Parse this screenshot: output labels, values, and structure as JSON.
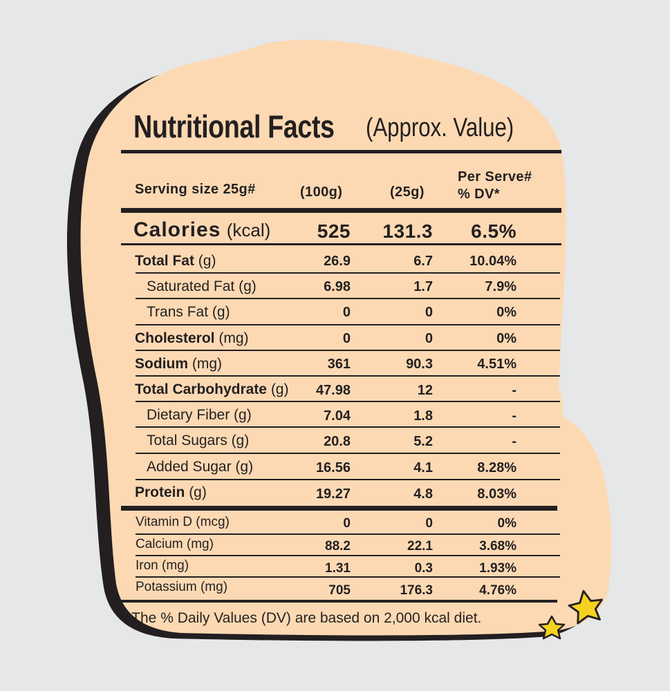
{
  "title": "Nutritional Facts",
  "subtitle": "(Approx. Value)",
  "header": {
    "serving": "Serving size 25g#",
    "col1": "(100g)",
    "col2": "(25g)",
    "col3_line1": "Per Serve#",
    "col3_line2": "% DV*"
  },
  "calories": {
    "label": "Calories",
    "unit": "(kcal)",
    "v100": "525",
    "v25": "131.3",
    "dv": "6.5%"
  },
  "rows": [
    {
      "label": "Total Fat",
      "unit": "(g)",
      "v100": "26.9",
      "v25": "6.7",
      "dv": "10.04%"
    },
    {
      "label": "Saturated Fat (g)",
      "v100": "6.98",
      "v25": "1.7",
      "dv": "7.9%"
    },
    {
      "label": "Trans Fat (g)",
      "v100": "0",
      "v25": "0",
      "dv": "0%"
    },
    {
      "label": "Cholesterol",
      "unit": "(mg)",
      "v100": "0",
      "v25": "0",
      "dv": "0%"
    },
    {
      "label": "Sodium",
      "unit": "(mg)",
      "v100": "361",
      "v25": "90.3",
      "dv": "4.51%"
    },
    {
      "label": "Total Carbohydrate",
      "unit": "(g)",
      "v100": "47.98",
      "v25": "12",
      "dv": "-"
    },
    {
      "label": "Dietary Fiber (g)",
      "v100": "7.04",
      "v25": "1.8",
      "dv": "-"
    },
    {
      "label": "Total Sugars (g)",
      "v100": "20.8",
      "v25": "5.2",
      "dv": "-"
    },
    {
      "label": "Added Sugar (g)",
      "v100": "16.56",
      "v25": "4.1",
      "dv": "8.28%"
    },
    {
      "label": "Protein",
      "unit": "(g)",
      "v100": "19.27",
      "v25": "4.8",
      "dv": "8.03%"
    }
  ],
  "micros": [
    {
      "label": "Vitamin D (mcg)",
      "v100": "0",
      "v25": "0",
      "dv": "0%"
    },
    {
      "label": "Calcium (mg)",
      "v100": "88.2",
      "v25": "22.1",
      "dv": "3.68%"
    },
    {
      "label": "Iron (mg)",
      "v100": "1.31",
      "v25": "0.3",
      "dv": "1.93%"
    },
    {
      "label": "Potassium (mg)",
      "v100": "705",
      "v25": "176.3",
      "dv": "4.76%"
    }
  ],
  "footnote": "*The % Daily Values (DV) are based on 2,000 kcal diet.",
  "colors": {
    "background": "#e6e7e8",
    "panel": "#fcd9b3",
    "ink": "#231f20",
    "star": "#f5d21f"
  },
  "icons": [
    "star-icon",
    "star-icon"
  ]
}
